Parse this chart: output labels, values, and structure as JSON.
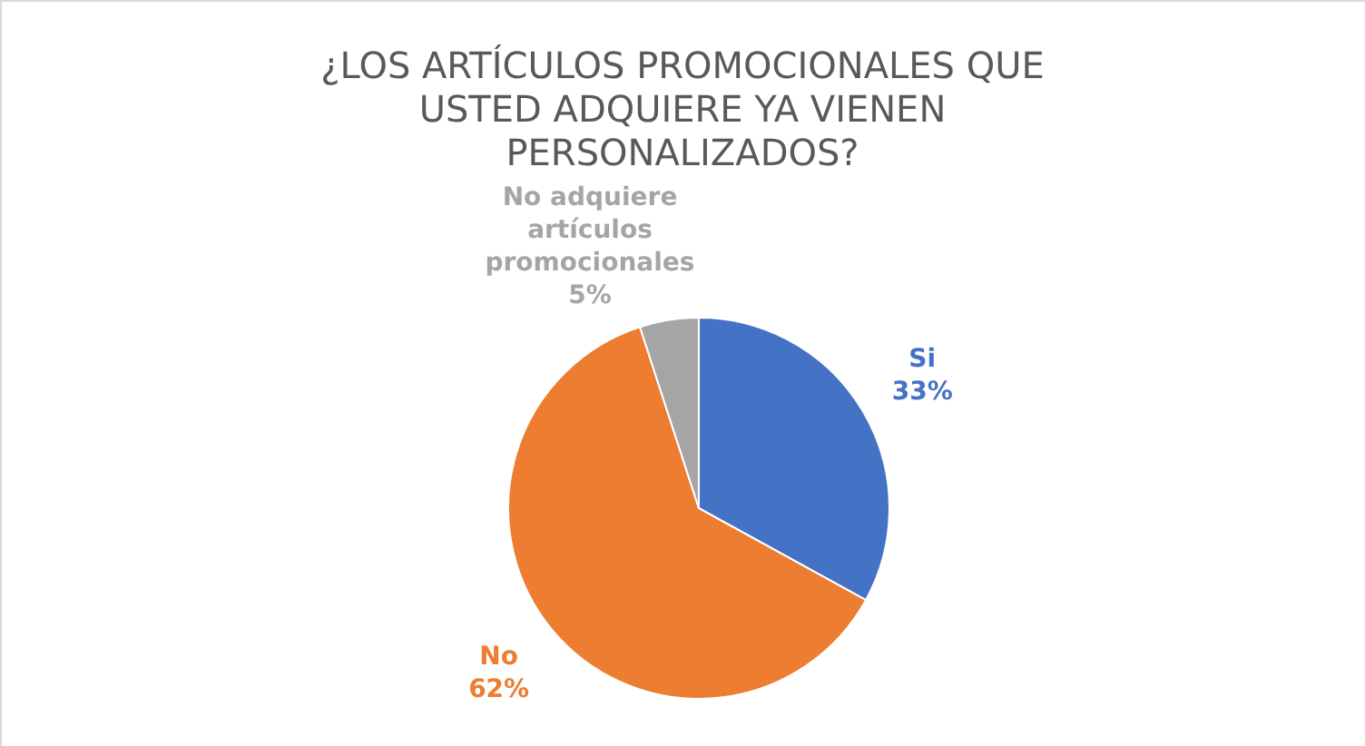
{
  "chart_data": {
    "type": "pie",
    "title": "¿LOS ARTÍCULOS PROMOCIONALES QUE USTED ADQUIERE YA VIENEN PERSONALIZADOS?",
    "categories": [
      "Si",
      "No",
      "No adquiere artículos promocionales"
    ],
    "values": [
      33,
      62,
      5
    ],
    "value_labels": [
      "33%",
      "62%",
      "5%"
    ],
    "colors": [
      "#4472c4",
      "#ed7d31",
      "#a5a5a5"
    ],
    "legend": false
  }
}
